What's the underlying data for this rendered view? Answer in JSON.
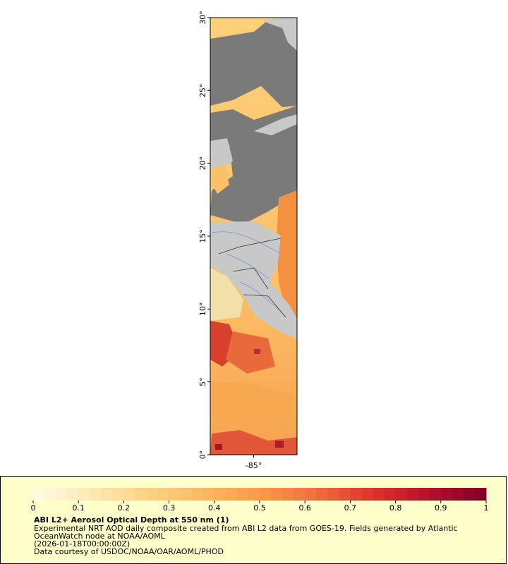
{
  "map": {
    "lat_range": [
      0,
      30
    ],
    "lon_range": [
      -88,
      -82
    ],
    "lat_ticks": [
      {
        "value": 0,
        "label": "0°"
      },
      {
        "value": 5,
        "label": "5°"
      },
      {
        "value": 10,
        "label": "10°"
      },
      {
        "value": 15,
        "label": "15°"
      },
      {
        "value": 20,
        "label": "20°"
      },
      {
        "value": 25,
        "label": "25°"
      },
      {
        "value": 30,
        "label": "30°"
      }
    ],
    "lon_ticks": [
      {
        "value": -85,
        "label": "-85°"
      }
    ]
  },
  "legend": {
    "title": "ABI L2+ Aerosol Optical Depth at 550 nm (1)",
    "lines": [
      "Experimental NRT AOD daily composite created from ABI L2 data from GOES-19. Fields generated by Atlantic",
      "OceanWatch node at NOAA/AOML",
      "(2026-01-18T00:00:00Z)",
      "Data courtesy of USDOC/NOAA/OAR/AOML/PHOD"
    ],
    "colorbar": {
      "range": [
        0,
        1
      ],
      "ticks": [
        0,
        0.1,
        0.2,
        0.3,
        0.4,
        0.5,
        0.6,
        0.7,
        0.8,
        0.9,
        1
      ],
      "colors": [
        "#fffbe6",
        "#fee9b4",
        "#fed383",
        "#fdb862",
        "#fc9a48",
        "#f46d3c",
        "#e0312a",
        "#b80f2c",
        "#800026"
      ]
    }
  }
}
